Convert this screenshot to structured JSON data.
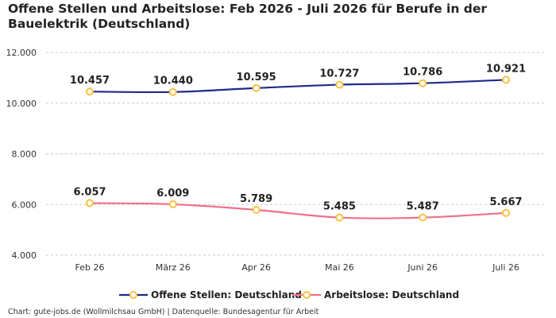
{
  "title": "Offene Stellen und Arbeitslose: Feb 2026 - Juli 2026 für Berufe in der Bauelektrik (Deutschland)",
  "footer": "Chart: gute-jobs.de (Wollmilchsau GmbH) | Datenquelle: Bundesagentur für Arbeit",
  "chart_data": {
    "type": "line",
    "title": "Offene Stellen und Arbeitslose: Feb 2026 - Juli 2026 für Berufe in der Bauelektrik (Deutschland)",
    "xlabel": "",
    "ylabel": "",
    "categories": [
      "Feb 26",
      "März 26",
      "Apr 26",
      "Mai 26",
      "Juni 26",
      "Juli 26"
    ],
    "ylim": [
      4000,
      12000
    ],
    "yticks": [
      4000,
      6000,
      8000,
      10000,
      12000
    ],
    "ytick_labels": [
      "4.000",
      "6.000",
      "8.000",
      "10.000",
      "12.000"
    ],
    "grid": true,
    "legend_position": "bottom",
    "marker_color": "#f5c242",
    "series": [
      {
        "name": "Offene Stellen: Deutschland",
        "color": "#1f2a8a",
        "values": [
          10457,
          10440,
          10595,
          10727,
          10786,
          10921
        ],
        "labels": [
          "10.457",
          "10.440",
          "10.595",
          "10.727",
          "10.786",
          "10.921"
        ]
      },
      {
        "name": "Arbeitslose: Deutschland",
        "color": "#f0708a",
        "values": [
          6057,
          6009,
          5789,
          5485,
          5487,
          5667
        ],
        "labels": [
          "6.057",
          "6.009",
          "5.789",
          "5.485",
          "5.487",
          "5.667"
        ]
      }
    ]
  }
}
